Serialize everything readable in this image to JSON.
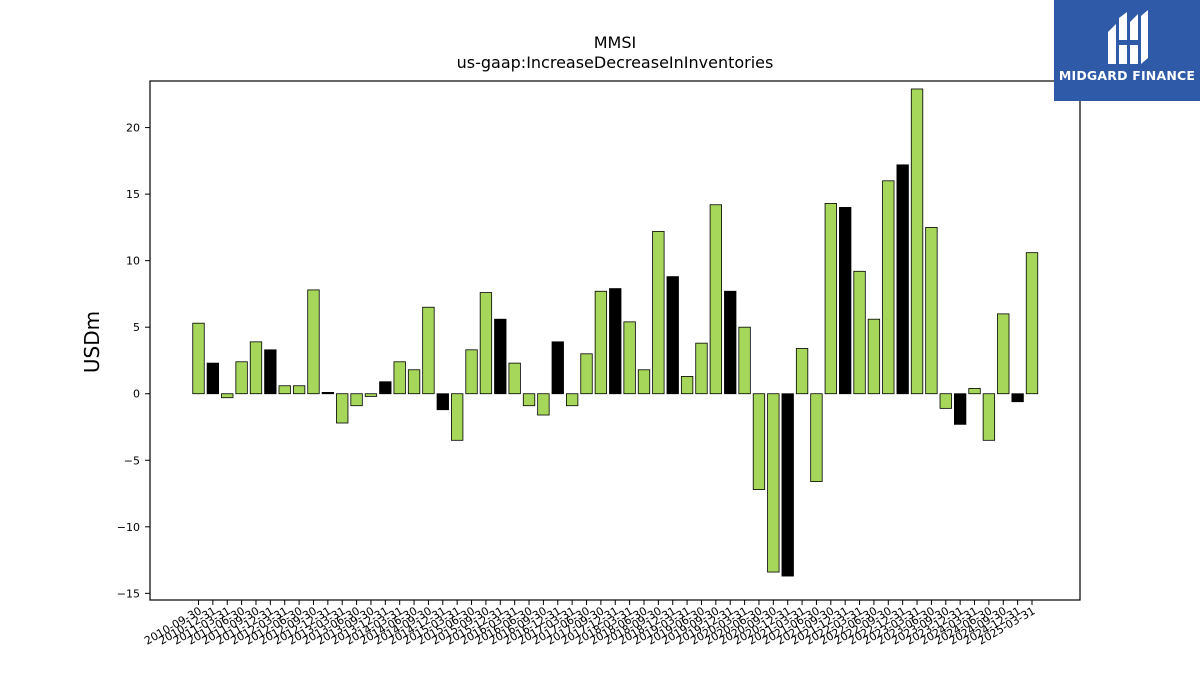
{
  "chart_data": {
    "type": "bar",
    "title": "MMSI",
    "subtitle": "us-gaap:IncreaseDecreaseInInventories",
    "ylabel": "USDm",
    "ylim": [
      -15.5,
      23.5
    ],
    "yticks": [
      -15,
      -10,
      -5,
      0,
      5,
      10,
      15,
      20
    ],
    "colors": {
      "quarterly": "#a6d75b",
      "annual": "#000000"
    },
    "categories": [
      "2010-09-30",
      "2010-12-31",
      "2011-03-31",
      "2011-06-30",
      "2011-09-30",
      "2011-12-31",
      "2012-03-31",
      "2012-06-30",
      "2012-09-30",
      "2012-12-31",
      "2013-03-31",
      "2013-06-30",
      "2013-09-30",
      "2013-12-31",
      "2014-03-31",
      "2014-06-30",
      "2014-09-30",
      "2014-12-31",
      "2015-03-31",
      "2015-06-30",
      "2015-09-30",
      "2015-12-31",
      "2016-03-31",
      "2016-06-30",
      "2016-09-30",
      "2016-12-31",
      "2017-03-31",
      "2017-06-30",
      "2017-09-30",
      "2017-12-31",
      "2018-03-31",
      "2018-06-30",
      "2018-09-30",
      "2018-12-31",
      "2019-03-31",
      "2019-06-30",
      "2019-09-30",
      "2019-12-31",
      "2020-03-31",
      "2020-06-30",
      "2020-09-30",
      "2020-12-31",
      "2021-03-31",
      "2021-06-30",
      "2021-09-30",
      "2021-12-31",
      "2022-03-31",
      "2022-06-30",
      "2022-09-30",
      "2022-12-31",
      "2023-03-31",
      "2023-06-30",
      "2023-09-30",
      "2023-12-31",
      "2024-03-31",
      "2024-06-30",
      "2024-09-30",
      "2024-12-31",
      "2025-03-31"
    ],
    "values": [
      5.3,
      2.3,
      -0.3,
      2.4,
      3.9,
      3.3,
      0.6,
      0.6,
      7.8,
      0.1,
      -2.2,
      -0.9,
      -0.2,
      0.9,
      2.4,
      1.8,
      6.5,
      -1.2,
      -3.5,
      3.3,
      7.6,
      5.6,
      2.3,
      -0.9,
      -1.6,
      3.9,
      -0.9,
      3.0,
      7.7,
      7.9,
      5.4,
      1.8,
      12.2,
      8.8,
      1.3,
      3.8,
      14.2,
      7.7,
      5.0,
      -7.2,
      -13.4,
      -13.7,
      3.4,
      -6.6,
      14.3,
      14.0,
      9.2,
      5.6,
      16.0,
      17.2,
      22.9,
      12.5,
      -1.1,
      -2.3,
      0.4,
      -3.5,
      6.0,
      -0.6,
      10.6
    ],
    "annual": [
      false,
      true,
      false,
      false,
      false,
      true,
      false,
      false,
      false,
      true,
      false,
      false,
      false,
      true,
      false,
      false,
      false,
      true,
      false,
      false,
      false,
      true,
      false,
      false,
      false,
      true,
      false,
      false,
      false,
      true,
      false,
      false,
      false,
      true,
      false,
      false,
      false,
      true,
      false,
      false,
      false,
      true,
      false,
      false,
      false,
      true,
      false,
      false,
      false,
      true,
      false,
      false,
      false,
      true,
      false,
      false,
      false,
      true,
      false
    ]
  },
  "logo": {
    "text": "MIDGARD FINANCE",
    "icon": "midgard-logo-icon"
  }
}
